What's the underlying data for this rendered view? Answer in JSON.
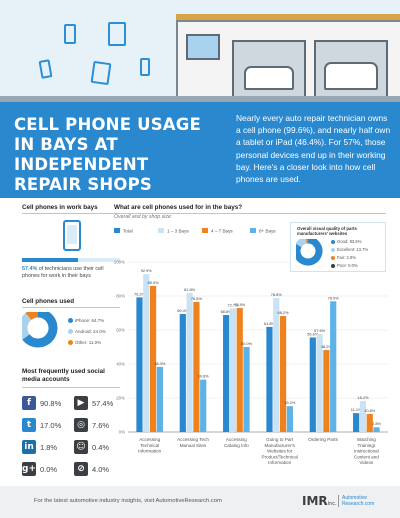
{
  "header": {
    "title": "CELL PHONE USAGE IN BAYS AT INDEPENDENT REPAIR SHOPS",
    "intro": "Nearly every auto repair technician owns a cell phone (99.6%), and nearly half own a tablet or iPad (46.4%). For 57%, those personal devices end up in their working bay. Here's a closer look into how cell phones are used."
  },
  "left": {
    "work_bays": {
      "heading": "Cell phones in work bays",
      "percent": 57.4,
      "stat_value": "57.4%",
      "stat_text": "of technicians use their cell phones for work in their bays"
    },
    "phones_used": {
      "heading": "Cell phones used",
      "slices": [
        {
          "label": "iPhone: 64.7%",
          "value": 64.7,
          "color": "#2a88cf"
        },
        {
          "label": "Android: 24.0%",
          "value": 24.0,
          "color": "#a9d2ef"
        },
        {
          "label": "Other: 11.0%",
          "value": 11.0,
          "color": "#f0821e"
        }
      ]
    },
    "social": {
      "heading": "Most frequently used social media accounts",
      "items": [
        {
          "icon": "facebook-icon",
          "glyph": "f",
          "color": "#3b5998",
          "value": "90.8%"
        },
        {
          "icon": "youtube-icon",
          "glyph": "▶",
          "color": "#3b3f44",
          "value": "57.4%"
        },
        {
          "icon": "twitter-icon",
          "glyph": "t",
          "color": "#2a88cf",
          "value": "17.0%"
        },
        {
          "icon": "instagram-icon",
          "glyph": "◎",
          "color": "#3b3f44",
          "value": "7.6%"
        },
        {
          "icon": "linkedin-icon",
          "glyph": "in",
          "color": "#1d6fa5",
          "value": "1.8%"
        },
        {
          "icon": "snapchat-icon",
          "glyph": "☺",
          "color": "#3b3f44",
          "value": "0.4%"
        },
        {
          "icon": "google-plus-icon",
          "glyph": "g+",
          "color": "#3b3f44",
          "value": "0.0%"
        },
        {
          "icon": "none-icon",
          "glyph": "⊘",
          "color": "#3b3f44",
          "value": "4.0%"
        }
      ]
    }
  },
  "chart_data": {
    "type": "bar",
    "title": "What are cell phones used for in the bays?",
    "subtitle": "Overall and by shop size:",
    "categories": [
      "Accessing Technical Information",
      "Accessing Tech Manual Sites",
      "Accessing Catalog Info",
      "Going to Part Manufacturer's Websites for Product/Technical Information",
      "Ordering Parts",
      "Watching Training/ Instructional Content and Videos"
    ],
    "series": [
      {
        "name": "Total",
        "color": "#2a88cf",
        "values": [
          79.2,
          69.4,
          68.8,
          61.8,
          55.6,
          11.1
        ]
      },
      {
        "name": "1 – 3 Bays",
        "color": "#c9e3f5",
        "values": [
          92.9,
          81.8,
          72.7,
          78.8,
          57.6,
          18.2
        ]
      },
      {
        "name": "4 – 7 Bays",
        "color": "#f0821e",
        "values": [
          85.9,
          76.5,
          72.9,
          68.2,
          48.2,
          10.6
        ]
      },
      {
        "name": "8+ Bays",
        "color": "#5db3e8",
        "values": [
          38.3,
          30.8,
          50.0,
          15.2,
          76.9,
          2.8
        ]
      }
    ],
    "yticks": [
      "0%",
      "20%",
      "40%",
      "60%",
      "80%",
      "100%"
    ],
    "ylim": [
      0,
      100
    ],
    "inset": {
      "title": "Overall visual quality of parts manufacturers' websites",
      "slices": [
        {
          "label": "Good: 83.5%",
          "value": 83.5,
          "color": "#2a88cf"
        },
        {
          "label": "Excellent: 13.7%",
          "value": 13.7,
          "color": "#a9d2ef"
        },
        {
          "label": "Fair: 2.8%",
          "value": 2.8,
          "color": "#f0821e"
        },
        {
          "label": "Poor: 0.0%",
          "value": 0.0,
          "color": "#3b3f44"
        }
      ]
    }
  },
  "footer": {
    "text": "For the latest automotive industry insights, visit AutomotiveResearch.com",
    "imr": "IMR",
    "imr_suffix": "Inc.",
    "brand": "Automotive Research.com"
  }
}
